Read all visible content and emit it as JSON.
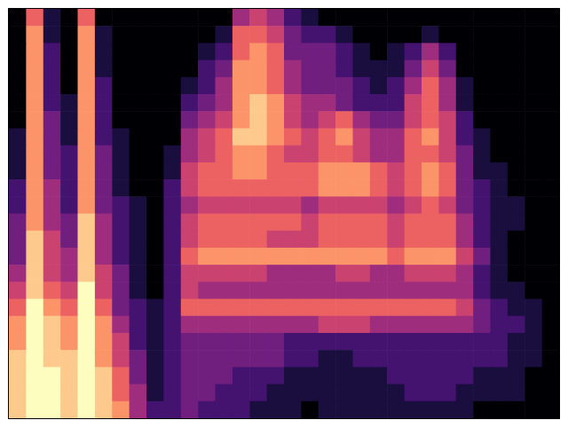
{
  "chart_data": {
    "type": "heatmap",
    "color": "magma",
    "tick_labels": false,
    "grid": false,
    "color_range": [
      0,
      9
    ],
    "cells": [
      [
        0,
        6,
        1,
        0,
        6,
        0,
        0,
        0,
        0,
        0,
        0,
        0,
        0,
        4,
        5,
        4,
        2,
        1,
        0,
        0,
        0,
        0,
        0,
        0,
        0,
        0,
        0,
        0,
        0,
        0,
        0,
        0
      ],
      [
        0,
        7,
        1,
        0,
        7,
        1,
        0,
        0,
        0,
        0,
        0,
        0,
        1,
        6,
        6,
        5,
        3,
        2,
        2,
        1,
        0,
        0,
        0,
        0,
        1,
        0,
        0,
        0,
        0,
        0,
        0,
        0
      ],
      [
        0,
        7,
        2,
        0,
        7,
        1,
        0,
        0,
        0,
        0,
        0,
        1,
        2,
        6,
        7,
        6,
        3,
        3,
        3,
        2,
        1,
        0,
        1,
        2,
        4,
        2,
        0,
        0,
        0,
        0,
        0,
        0
      ],
      [
        0,
        7,
        2,
        0,
        7,
        1,
        0,
        0,
        0,
        0,
        0,
        2,
        3,
        7,
        7,
        6,
        4,
        3,
        3,
        2,
        1,
        1,
        1,
        3,
        5,
        3,
        0,
        0,
        0,
        0,
        0,
        0
      ],
      [
        0,
        7,
        2,
        0,
        7,
        2,
        0,
        0,
        0,
        0,
        1,
        2,
        4,
        7,
        7,
        6,
        4,
        3,
        3,
        3,
        2,
        1,
        2,
        4,
        6,
        4,
        1,
        0,
        0,
        0,
        0,
        0
      ],
      [
        0,
        7,
        2,
        1,
        7,
        2,
        0,
        0,
        0,
        0,
        2,
        3,
        4,
        7,
        8,
        7,
        5,
        4,
        4,
        3,
        2,
        2,
        2,
        5,
        6,
        4,
        1,
        0,
        0,
        0,
        0,
        0
      ],
      [
        0,
        7,
        3,
        1,
        7,
        2,
        0,
        0,
        0,
        0,
        3,
        4,
        5,
        7,
        8,
        7,
        5,
        4,
        5,
        6,
        4,
        3,
        3,
        5,
        6,
        5,
        2,
        0,
        0,
        0,
        0,
        0
      ],
      [
        1,
        7,
        3,
        1,
        7,
        2,
        1,
        0,
        0,
        0,
        4,
        5,
        6,
        8,
        8,
        7,
        6,
        5,
        6,
        7,
        5,
        4,
        4,
        6,
        7,
        5,
        2,
        1,
        0,
        0,
        0,
        0
      ],
      [
        1,
        7,
        3,
        2,
        7,
        3,
        1,
        0,
        0,
        1,
        4,
        5,
        6,
        7,
        7,
        6,
        5,
        5,
        6,
        6,
        5,
        4,
        4,
        6,
        6,
        5,
        3,
        1,
        0,
        0,
        0,
        0
      ],
      [
        1,
        7,
        3,
        2,
        7,
        3,
        1,
        0,
        0,
        1,
        5,
        6,
        6,
        7,
        7,
        6,
        6,
        6,
        7,
        7,
        7,
        6,
        5,
        6,
        7,
        6,
        3,
        1,
        1,
        0,
        0,
        0
      ],
      [
        2,
        7,
        4,
        2,
        7,
        3,
        1,
        0,
        0,
        2,
        5,
        6,
        6,
        6,
        6,
        6,
        6,
        6,
        7,
        7,
        7,
        6,
        5,
        6,
        7,
        6,
        3,
        2,
        1,
        0,
        0,
        0
      ],
      [
        2,
        7,
        4,
        2,
        7,
        3,
        2,
        1,
        0,
        2,
        4,
        5,
        5,
        5,
        5,
        5,
        5,
        4,
        5,
        5,
        5,
        5,
        4,
        5,
        6,
        5,
        3,
        2,
        1,
        1,
        0,
        0
      ],
      [
        3,
        7,
        4,
        3,
        8,
        4,
        2,
        1,
        0,
        2,
        5,
        6,
        6,
        6,
        6,
        6,
        6,
        5,
        6,
        6,
        6,
        6,
        5,
        6,
        6,
        6,
        4,
        2,
        1,
        1,
        0,
        0
      ],
      [
        3,
        8,
        5,
        3,
        8,
        4,
        2,
        1,
        0,
        2,
        5,
        6,
        6,
        6,
        6,
        5,
        5,
        5,
        6,
        6,
        6,
        6,
        5,
        6,
        6,
        6,
        4,
        2,
        1,
        0,
        0,
        0
      ],
      [
        3,
        8,
        5,
        4,
        8,
        4,
        2,
        1,
        0,
        2,
        6,
        7,
        7,
        7,
        7,
        7,
        7,
        7,
        7,
        7,
        7,
        7,
        6,
        7,
        7,
        7,
        5,
        3,
        1,
        0,
        0,
        0
      ],
      [
        4,
        8,
        5,
        4,
        8,
        5,
        3,
        1,
        0,
        2,
        5,
        5,
        5,
        5,
        5,
        4,
        4,
        4,
        4,
        5,
        5,
        4,
        4,
        5,
        5,
        5,
        4,
        2,
        1,
        0,
        0,
        0
      ],
      [
        5,
        8,
        6,
        5,
        9,
        5,
        3,
        1,
        0,
        2,
        5,
        4,
        4,
        4,
        4,
        4,
        4,
        4,
        4,
        4,
        4,
        4,
        4,
        4,
        4,
        4,
        4,
        2,
        1,
        1,
        0,
        0
      ],
      [
        6,
        9,
        7,
        6,
        9,
        6,
        3,
        2,
        1,
        2,
        6,
        6,
        6,
        6,
        6,
        6,
        6,
        6,
        6,
        6,
        6,
        6,
        6,
        6,
        6,
        6,
        5,
        3,
        2,
        1,
        1,
        0
      ],
      [
        7,
        9,
        8,
        7,
        9,
        7,
        4,
        2,
        1,
        2,
        4,
        4,
        4,
        4,
        4,
        4,
        4,
        4,
        5,
        5,
        5,
        4,
        4,
        4,
        4,
        4,
        4,
        3,
        2,
        2,
        1,
        0
      ],
      [
        7,
        9,
        8,
        7,
        9,
        7,
        5,
        2,
        1,
        2,
        3,
        3,
        3,
        3,
        3,
        3,
        2,
        2,
        2,
        2,
        2,
        2,
        2,
        2,
        2,
        2,
        2,
        2,
        2,
        1,
        1,
        0
      ],
      [
        8,
        9,
        8,
        8,
        9,
        7,
        5,
        3,
        1,
        2,
        3,
        3,
        3,
        3,
        3,
        3,
        2,
        2,
        1,
        1,
        2,
        2,
        2,
        2,
        2,
        2,
        2,
        2,
        2,
        1,
        1,
        0
      ],
      [
        8,
        9,
        9,
        8,
        9,
        8,
        6,
        3,
        1,
        2,
        3,
        3,
        3,
        2,
        2,
        2,
        1,
        1,
        1,
        1,
        1,
        1,
        2,
        2,
        2,
        2,
        2,
        1,
        1,
        1,
        0,
        0
      ],
      [
        8,
        9,
        9,
        8,
        9,
        8,
        6,
        4,
        1,
        2,
        3,
        3,
        2,
        2,
        2,
        1,
        1,
        1,
        1,
        1,
        1,
        1,
        1,
        2,
        2,
        2,
        1,
        1,
        1,
        1,
        0,
        0
      ],
      [
        8,
        9,
        9,
        8,
        9,
        8,
        7,
        4,
        2,
        2,
        3,
        2,
        2,
        2,
        1,
        1,
        1,
        0,
        1,
        1,
        1,
        1,
        1,
        1,
        1,
        1,
        1,
        0,
        0,
        0,
        0,
        0
      ]
    ]
  }
}
